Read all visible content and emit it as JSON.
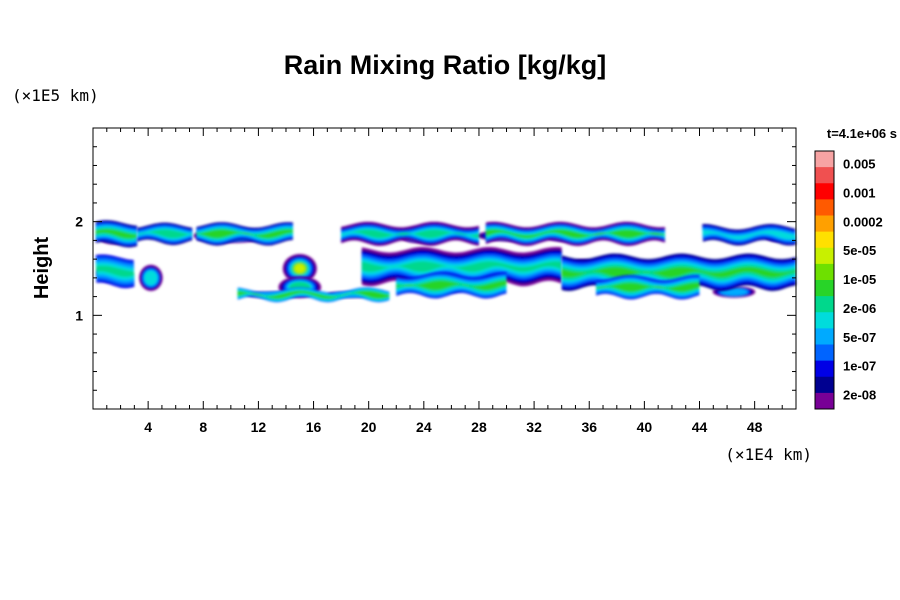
{
  "chart_data": {
    "type": "heatmap",
    "title": "Rain Mixing Ratio [kg/kg]",
    "ylabel": "Height",
    "x_unit": "(×1E4 km)",
    "y_unit": "(×1E5 km)",
    "time_label": "t=4.1e+06 s",
    "xlim": [
      0,
      51
    ],
    "ylim": [
      0,
      3
    ],
    "x_ticks": [
      "4",
      "8",
      "12",
      "16",
      "20",
      "24",
      "28",
      "32",
      "36",
      "40",
      "44",
      "48"
    ],
    "x_tick_values": [
      4,
      8,
      12,
      16,
      20,
      24,
      28,
      32,
      36,
      40,
      44,
      48
    ],
    "y_ticks": [
      "1",
      "2"
    ],
    "y_tick_values": [
      1,
      2
    ],
    "colorbar": {
      "colors": [
        "#f7a3a3",
        "#f05050",
        "#ff0000",
        "#ff5a00",
        "#ffa000",
        "#ffe000",
        "#c8f000",
        "#6ee000",
        "#28d428",
        "#00d88c",
        "#00dcdc",
        "#00aaff",
        "#0064ff",
        "#0000e6",
        "#000090",
        "#780096"
      ],
      "labels": [
        "0.005",
        "0.001",
        "0.0002",
        "5e-05",
        "1e-05",
        "2e-06",
        "5e-07",
        "1e-07",
        "2e-08"
      ]
    },
    "cells": [
      {
        "x": 1.5,
        "y": 1.85,
        "w": 1.5,
        "h": 0.12,
        "level": 6
      },
      {
        "x": 1.2,
        "y": 1.45,
        "w": 1.2,
        "h": 0.12,
        "level": 4
      },
      {
        "x": 4.2,
        "y": 1.4,
        "w": 1.1,
        "h": 0.18,
        "level": 5
      },
      {
        "x": 6.0,
        "y": 1.85,
        "w": 1.0,
        "h": 0.08,
        "level": 3
      },
      {
        "x": 10.0,
        "y": 1.85,
        "w": 3.5,
        "h": 0.1,
        "level": 4
      },
      {
        "x": 15.0,
        "y": 1.5,
        "w": 1.6,
        "h": 0.2,
        "level": 9
      },
      {
        "x": 15.0,
        "y": 1.3,
        "w": 2.0,
        "h": 0.15,
        "level": 6
      },
      {
        "x": 13.0,
        "y": 1.22,
        "w": 2.5,
        "h": 0.05,
        "level": 4
      },
      {
        "x": 18.5,
        "y": 1.22,
        "w": 2.0,
        "h": 0.05,
        "level": 4
      },
      {
        "x": 23.5,
        "y": 1.85,
        "w": 1.6,
        "h": 0.1,
        "level": 4
      },
      {
        "x": 26.0,
        "y": 1.4,
        "w": 2.0,
        "h": 0.2,
        "level": 6
      },
      {
        "x": 30.5,
        "y": 1.85,
        "w": 3.5,
        "h": 0.08,
        "level": 5
      },
      {
        "x": 34.0,
        "y": 1.85,
        "w": 1.5,
        "h": 0.08,
        "level": 3
      },
      {
        "x": 35.5,
        "y": 1.48,
        "w": 1.6,
        "h": 0.15,
        "level": 4
      },
      {
        "x": 40.5,
        "y": 1.4,
        "w": 1.8,
        "h": 0.15,
        "level": 5
      },
      {
        "x": 46.5,
        "y": 1.25,
        "w": 2.0,
        "h": 0.08,
        "level": 4
      },
      {
        "x": 47.5,
        "y": 1.5,
        "w": 2.0,
        "h": 0.1,
        "level": 4
      },
      {
        "x": 49.5,
        "y": 1.85,
        "w": 1.0,
        "h": 0.08,
        "level": 3
      }
    ]
  }
}
